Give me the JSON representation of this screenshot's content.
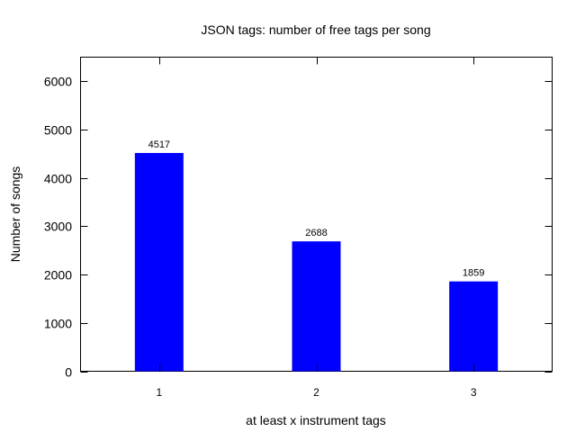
{
  "chart_data": {
    "type": "bar",
    "title": "JSON tags: number of free tags per song",
    "xlabel": "at least x instrument tags",
    "ylabel": "Number of songs",
    "categories": [
      "1",
      "2",
      "3"
    ],
    "values": [
      4517,
      2688,
      1859
    ],
    "data_labels": [
      "4517",
      "2688",
      "1859"
    ],
    "ylim": [
      0,
      6500
    ],
    "y_ticks": [
      0,
      1000,
      2000,
      3000,
      4000,
      5000,
      6000
    ],
    "y_tick_labels": [
      "0",
      "1000",
      "2000",
      "3000",
      "4000",
      "5000",
      "6000"
    ],
    "bar_color": "#0000ff",
    "grid": false,
    "legend": "none"
  }
}
